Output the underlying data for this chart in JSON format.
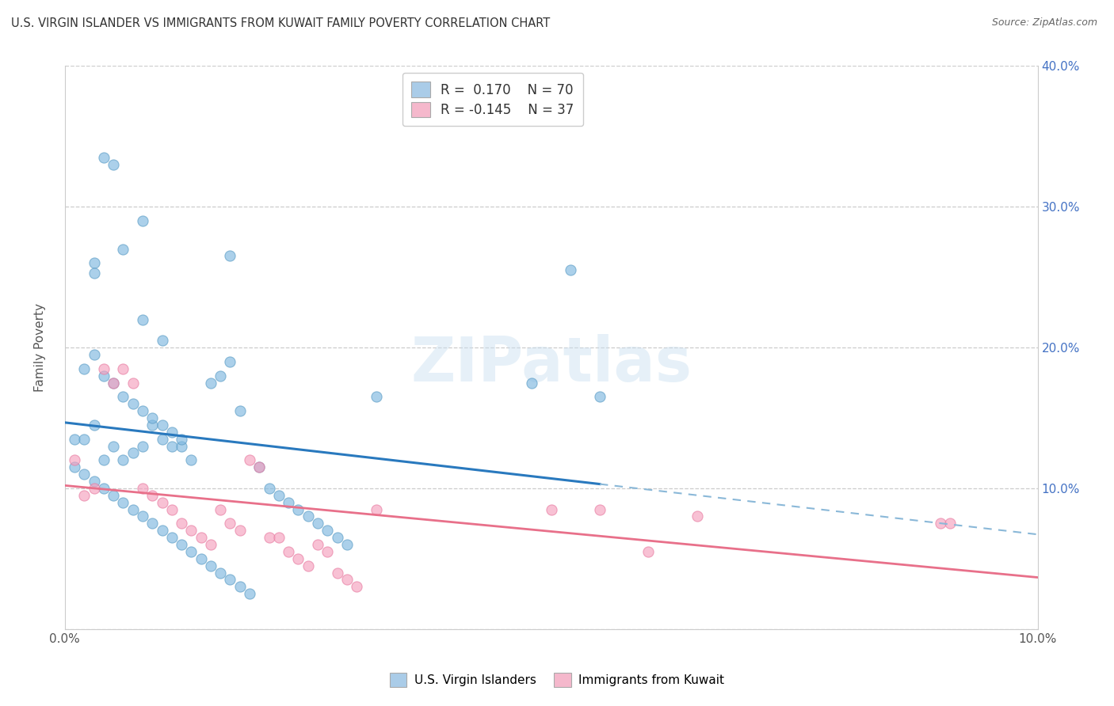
{
  "title": "U.S. VIRGIN ISLANDER VS IMMIGRANTS FROM KUWAIT FAMILY POVERTY CORRELATION CHART",
  "source": "Source: ZipAtlas.com",
  "ylabel": "Family Poverty",
  "xtick_labels": [
    "0.0%",
    "10.0%"
  ],
  "xmin": 0.0,
  "xmax": 0.1,
  "ymin": 0.0,
  "ymax": 0.4,
  "yticks": [
    0.0,
    0.1,
    0.2,
    0.3,
    0.4
  ],
  "ytick_labels": [
    "",
    "10.0%",
    "20.0%",
    "30.0%",
    "40.0%"
  ],
  "blue_R": 0.17,
  "blue_N": 70,
  "pink_R": -0.145,
  "pink_N": 37,
  "blue_scatter_color": "#7fb8e0",
  "pink_scatter_color": "#f5a0be",
  "blue_edge_color": "#5a9cc5",
  "pink_edge_color": "#e87aa0",
  "blue_line_color": "#2979be",
  "pink_line_color": "#e8708a",
  "blue_dash_color": "#8ab8d8",
  "scatter_alpha": 0.65,
  "scatter_size": 90,
  "edge_width": 0.8,
  "legend_blue_label": "U.S. Virgin Islanders",
  "legend_pink_label": "Immigrants from Kuwait",
  "legend_blue_face": "#aacce8",
  "legend_pink_face": "#f5b8cc",
  "watermark": "ZIPatlas",
  "title_color": "#333333",
  "axis_tick_color": "#4472C4",
  "label_color": "#555555",
  "grid_color": "#cccccc",
  "bg_color": "#ffffff",
  "blue_x": [
    0.004,
    0.005,
    0.008,
    0.003,
    0.006,
    0.017,
    0.003,
    0.052,
    0.048,
    0.008,
    0.01,
    0.001,
    0.002,
    0.003,
    0.004,
    0.005,
    0.006,
    0.007,
    0.008,
    0.009,
    0.01,
    0.011,
    0.012,
    0.013,
    0.002,
    0.003,
    0.004,
    0.005,
    0.006,
    0.007,
    0.008,
    0.009,
    0.01,
    0.011,
    0.012,
    0.001,
    0.002,
    0.003,
    0.004,
    0.005,
    0.006,
    0.007,
    0.008,
    0.009,
    0.01,
    0.011,
    0.012,
    0.013,
    0.014,
    0.015,
    0.016,
    0.017,
    0.018,
    0.019,
    0.02,
    0.021,
    0.022,
    0.023,
    0.024,
    0.025,
    0.026,
    0.027,
    0.028,
    0.029,
    0.015,
    0.016,
    0.017,
    0.018,
    0.032,
    0.055
  ],
  "blue_y": [
    0.335,
    0.33,
    0.29,
    0.26,
    0.27,
    0.265,
    0.253,
    0.255,
    0.175,
    0.22,
    0.205,
    0.135,
    0.135,
    0.145,
    0.12,
    0.13,
    0.12,
    0.125,
    0.13,
    0.145,
    0.135,
    0.13,
    0.13,
    0.12,
    0.185,
    0.195,
    0.18,
    0.175,
    0.165,
    0.16,
    0.155,
    0.15,
    0.145,
    0.14,
    0.135,
    0.115,
    0.11,
    0.105,
    0.1,
    0.095,
    0.09,
    0.085,
    0.08,
    0.075,
    0.07,
    0.065,
    0.06,
    0.055,
    0.05,
    0.045,
    0.04,
    0.035,
    0.03,
    0.025,
    0.115,
    0.1,
    0.095,
    0.09,
    0.085,
    0.08,
    0.075,
    0.07,
    0.065,
    0.06,
    0.175,
    0.18,
    0.19,
    0.155,
    0.165,
    0.165
  ],
  "pink_x": [
    0.001,
    0.002,
    0.003,
    0.004,
    0.005,
    0.006,
    0.007,
    0.008,
    0.009,
    0.01,
    0.011,
    0.012,
    0.013,
    0.014,
    0.015,
    0.016,
    0.017,
    0.018,
    0.019,
    0.02,
    0.021,
    0.022,
    0.023,
    0.024,
    0.025,
    0.026,
    0.027,
    0.028,
    0.029,
    0.03,
    0.032,
    0.05,
    0.055,
    0.06,
    0.065,
    0.09,
    0.091
  ],
  "pink_y": [
    0.12,
    0.095,
    0.1,
    0.185,
    0.175,
    0.185,
    0.175,
    0.1,
    0.095,
    0.09,
    0.085,
    0.075,
    0.07,
    0.065,
    0.06,
    0.085,
    0.075,
    0.07,
    0.12,
    0.115,
    0.065,
    0.065,
    0.055,
    0.05,
    0.045,
    0.06,
    0.055,
    0.04,
    0.035,
    0.03,
    0.085,
    0.085,
    0.085,
    0.055,
    0.08,
    0.075,
    0.075
  ]
}
